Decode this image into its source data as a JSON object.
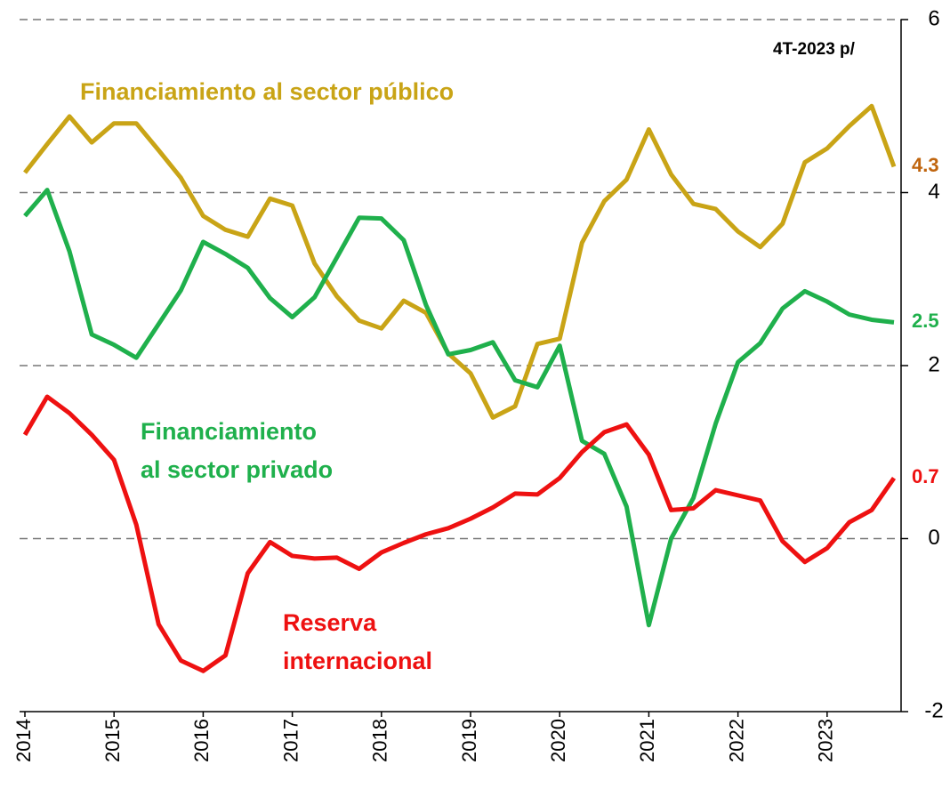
{
  "chart_data": {
    "type": "line",
    "subtitle": "4T-2023 p/",
    "x": [
      2014,
      2014.25,
      2014.5,
      2014.75,
      2015,
      2015.25,
      2015.5,
      2015.75,
      2016,
      2016.25,
      2016.5,
      2016.75,
      2017,
      2017.25,
      2017.5,
      2017.75,
      2018,
      2018.25,
      2018.5,
      2018.75,
      2019,
      2019.25,
      2019.5,
      2019.75,
      2020,
      2020.25,
      2020.5,
      2020.75,
      2021,
      2021.25,
      2021.5,
      2021.75,
      2022,
      2022.25,
      2022.5,
      2022.75,
      2023,
      2023.25,
      2023.5,
      2023.75
    ],
    "xlim": [
      2014,
      2023.75
    ],
    "xticks": [
      2014,
      2015,
      2016,
      2017,
      2018,
      2019,
      2020,
      2021,
      2022,
      2023
    ],
    "ylim": [
      -2,
      6
    ],
    "yticks": [
      -2,
      0,
      2,
      4,
      6
    ],
    "grid": true,
    "y_axis_side": "right",
    "series": [
      {
        "name": [
          "Financiamiento al sector público"
        ],
        "color": "#c9a416",
        "label_color": "#c0650e",
        "values": [
          4.23,
          4.56,
          4.88,
          4.58,
          4.8,
          4.8,
          4.49,
          4.17,
          3.73,
          3.57,
          3.49,
          3.93,
          3.85,
          3.18,
          2.8,
          2.52,
          2.43,
          2.75,
          2.61,
          2.14,
          1.91,
          1.4,
          1.53,
          2.25,
          2.31,
          3.42,
          3.9,
          4.15,
          4.73,
          4.21,
          3.87,
          3.81,
          3.55,
          3.37,
          3.64,
          4.35,
          4.51,
          4.77,
          5.0,
          4.3
        ],
        "value_labels": [
          null,
          null,
          null,
          null,
          null,
          null,
          null,
          null,
          null,
          null,
          null,
          null,
          null,
          null,
          null,
          null,
          null,
          null,
          null,
          null,
          null,
          null,
          null,
          null,
          null,
          null,
          null,
          null,
          null,
          null,
          null,
          null,
          null,
          null,
          null,
          null,
          null,
          null,
          null,
          "4.3"
        ]
      },
      {
        "name": [
          "Financiamiento",
          "al sector privado"
        ],
        "color": "#1fb04c",
        "label_color": "#1fb04c",
        "values": [
          3.73,
          4.03,
          3.32,
          2.36,
          2.24,
          2.09,
          2.48,
          2.87,
          3.43,
          3.29,
          3.13,
          2.78,
          2.56,
          2.79,
          3.25,
          3.71,
          3.7,
          3.45,
          2.7,
          2.13,
          2.18,
          2.27,
          1.83,
          1.75,
          2.23,
          1.13,
          0.98,
          0.37,
          -1.0,
          0.0,
          0.47,
          1.33,
          2.04,
          2.26,
          2.66,
          2.86,
          2.74,
          2.59,
          2.53,
          2.5
        ],
        "value_labels": [
          null,
          null,
          null,
          null,
          null,
          null,
          null,
          null,
          null,
          null,
          null,
          null,
          null,
          null,
          null,
          null,
          null,
          null,
          null,
          null,
          null,
          null,
          null,
          null,
          null,
          null,
          null,
          null,
          null,
          null,
          null,
          null,
          null,
          null,
          null,
          null,
          null,
          null,
          null,
          "2.5"
        ]
      },
      {
        "name": [
          "Reserva",
          "internacional"
        ],
        "color": "#ee1111",
        "label_color": "#ee1111",
        "values": [
          1.2,
          1.64,
          1.45,
          1.2,
          0.91,
          0.16,
          -0.99,
          -1.41,
          -1.53,
          -1.35,
          -0.4,
          -0.04,
          -0.2,
          -0.23,
          -0.22,
          -0.35,
          -0.16,
          -0.05,
          0.05,
          0.12,
          0.23,
          0.36,
          0.52,
          0.51,
          0.7,
          1.0,
          1.23,
          1.32,
          0.97,
          0.33,
          0.35,
          0.56,
          0.5,
          0.44,
          -0.03,
          -0.27,
          -0.11,
          0.19,
          0.33,
          0.7
        ],
        "value_labels": [
          null,
          null,
          null,
          null,
          null,
          null,
          null,
          null,
          null,
          null,
          null,
          null,
          null,
          null,
          null,
          null,
          null,
          null,
          null,
          null,
          null,
          null,
          null,
          null,
          null,
          null,
          null,
          null,
          null,
          null,
          null,
          null,
          null,
          null,
          null,
          null,
          null,
          null,
          null,
          "0.7"
        ]
      }
    ]
  }
}
